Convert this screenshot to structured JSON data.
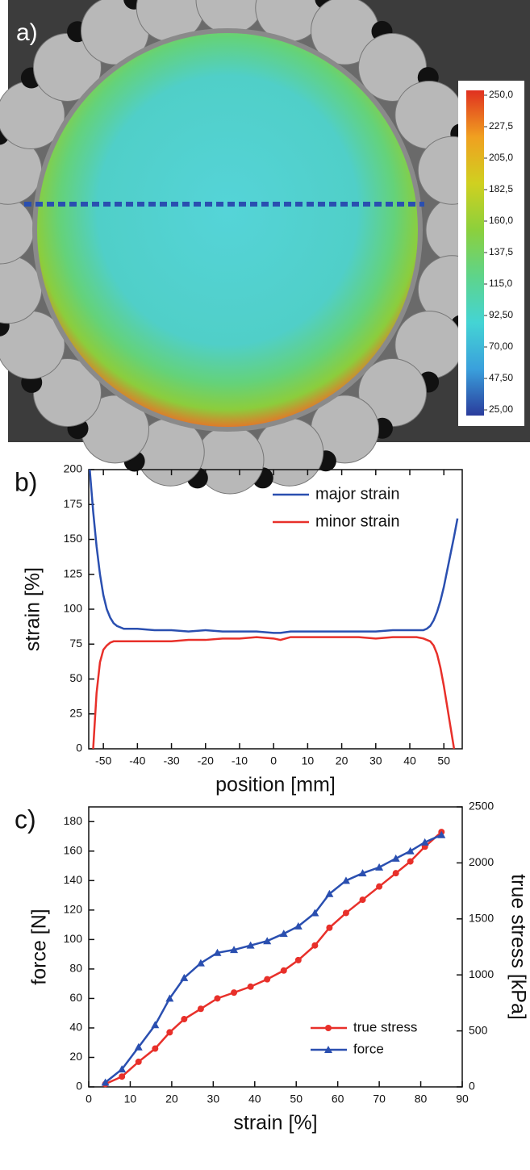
{
  "chart_data": [
    {
      "type": "image",
      "label": "a)",
      "colorbar": {
        "clim": [
          25,
          250
        ],
        "ticks": [
          {
            "value": 250,
            "label": "250,0"
          },
          {
            "value": 227.5,
            "label": "227,5"
          },
          {
            "value": 205,
            "label": "205,0"
          },
          {
            "value": 182.5,
            "label": "182,5"
          },
          {
            "value": 160,
            "label": "160,0"
          },
          {
            "value": 137.5,
            "label": "137,5"
          },
          {
            "value": 115,
            "label": "115,0"
          },
          {
            "value": 92.5,
            "label": "92,50"
          },
          {
            "value": 70,
            "label": "70,00"
          },
          {
            "value": 47.5,
            "label": "47,50"
          },
          {
            "value": 25,
            "label": "25,00"
          }
        ],
        "colors": [
          "#2a3c9c",
          "#3aa0dc",
          "#44d4d4",
          "#5ed48a",
          "#8cd03c",
          "#d0d020",
          "#f0a020",
          "#e03020"
        ]
      }
    },
    {
      "type": "line",
      "label": "b)",
      "xlabel": "position [mm]",
      "ylabel": "strain [%]",
      "xlim": [
        -54.3,
        55.4
      ],
      "ylim": [
        0,
        200
      ],
      "xticks": [
        -50,
        -40,
        -30,
        -20,
        -10,
        0,
        10,
        20,
        30,
        40,
        50
      ],
      "yticks": [
        0,
        25,
        50,
        75,
        100,
        125,
        150,
        175,
        200
      ],
      "x": [
        -54,
        -53,
        -52,
        -51,
        -50,
        -49,
        -48,
        -47,
        -46,
        -45,
        -44,
        -42,
        -40,
        -35,
        -30,
        -25,
        -20,
        -15,
        -10,
        -5,
        0,
        2,
        5,
        10,
        15,
        20,
        25,
        30,
        35,
        40,
        42,
        44,
        45,
        46,
        47,
        48,
        49,
        50,
        51,
        52,
        53,
        54
      ],
      "series": [
        {
          "name": "major strain",
          "color": "#2a4fb0",
          "values": [
            200,
            170,
            145,
            125,
            110,
            100,
            94,
            90,
            88,
            87,
            86,
            86,
            86,
            85,
            85,
            84,
            85,
            84,
            84,
            84,
            83,
            83,
            84,
            84,
            84,
            84,
            84,
            84,
            85,
            85,
            85,
            85,
            86,
            88,
            92,
            98,
            106,
            116,
            128,
            140,
            152,
            165
          ]
        },
        {
          "name": "minor strain",
          "color": "#e8302a",
          "values": [
            null,
            0,
            40,
            62,
            71,
            74,
            76,
            77,
            77,
            77,
            77,
            77,
            77,
            77,
            77,
            78,
            78,
            79,
            79,
            80,
            79,
            78,
            80,
            80,
            80,
            80,
            80,
            79,
            80,
            80,
            80,
            79,
            78,
            77,
            74,
            68,
            58,
            45,
            30,
            15,
            0,
            null
          ]
        }
      ]
    },
    {
      "type": "line",
      "label": "c)",
      "xlabel": "strain [%]",
      "ylabel": "force [N]",
      "y2label": "true stress [kPa]",
      "xlim": [
        0,
        90
      ],
      "ylim": [
        0,
        190
      ],
      "y2lim": [
        0,
        2500
      ],
      "xticks": [
        0,
        10,
        20,
        30,
        40,
        50,
        60,
        70,
        80,
        90
      ],
      "yticks": [
        0,
        20,
        40,
        60,
        80,
        100,
        120,
        140,
        160,
        180
      ],
      "y2ticks": [
        0,
        500,
        1000,
        1500,
        2000,
        2500
      ],
      "x": [
        4,
        8,
        12,
        16,
        19.5,
        23,
        27,
        31,
        35,
        39,
        43,
        47,
        50.5,
        54.5,
        58,
        62,
        66,
        70,
        74,
        77.5,
        81,
        85
      ],
      "series": [
        {
          "name": "true stress",
          "color": "#e8302a",
          "marker": "circle",
          "axis": "y2",
          "values": [
            26,
            92,
            224,
            342,
            487,
            605,
            697,
            790,
            842,
            895,
            961,
            1039,
            1132,
            1263,
            1421,
            1553,
            1671,
            1789,
            1908,
            2013,
            2145,
            2276
          ]
        },
        {
          "name": "force",
          "color": "#2a4fb0",
          "marker": "triangle",
          "values": [
            3,
            12,
            27,
            42,
            60,
            74,
            84,
            91,
            93,
            96,
            99,
            104,
            109,
            118,
            131,
            140,
            145,
            149,
            155,
            160,
            166,
            171
          ]
        }
      ]
    }
  ]
}
